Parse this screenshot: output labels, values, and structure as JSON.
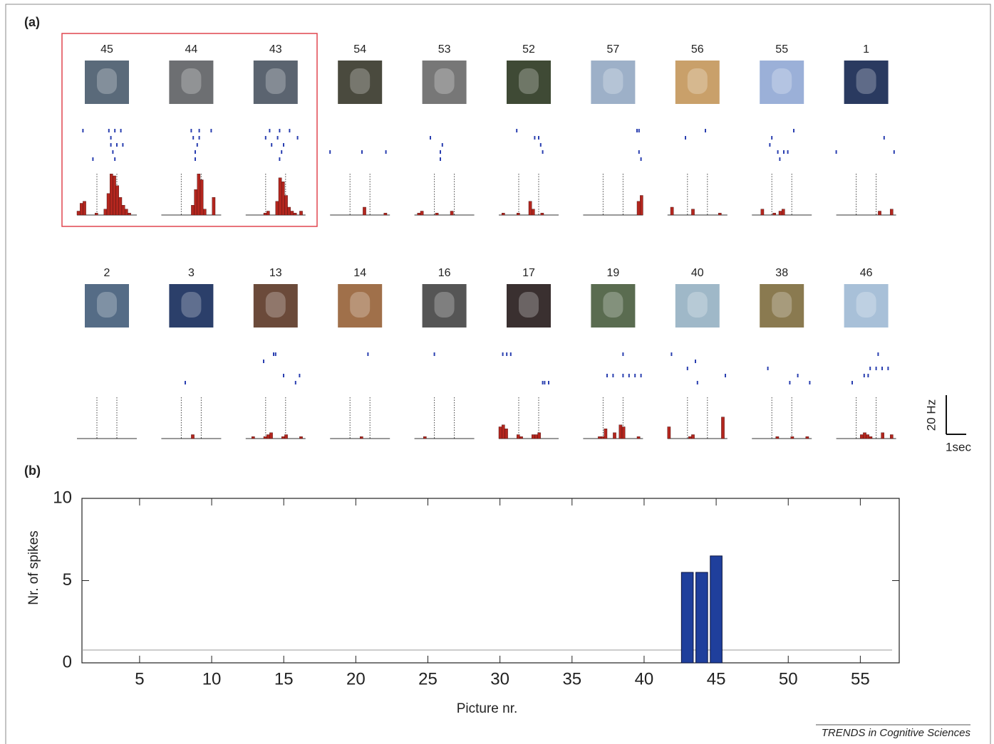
{
  "panel_a": {
    "label": "(a)",
    "scale_bar": {
      "y_value": 20,
      "y_label": "20 Hz",
      "x_value": 1,
      "x_label": "1sec"
    },
    "xlim": [
      -1,
      2
    ],
    "stim": [
      0,
      1
    ],
    "panels": [
      {
        "label": "45",
        "hist": [
          2,
          6,
          7,
          0,
          0,
          0,
          1,
          0,
          0,
          3,
          11,
          21,
          20,
          15,
          9,
          5,
          3,
          1,
          0,
          0
        ],
        "spikes": [
          [
            0,
            -0.7
          ],
          [
            0,
            0.6
          ],
          [
            0,
            0.9
          ],
          [
            0,
            1.2
          ],
          [
            1,
            0.7
          ],
          [
            2,
            0.7
          ],
          [
            2,
            1.0
          ],
          [
            2,
            1.3
          ],
          [
            3,
            0.8
          ],
          [
            4,
            -0.2
          ],
          [
            4,
            0.9
          ]
        ]
      },
      {
        "label": "44",
        "hist": [
          0,
          0,
          0,
          0,
          0,
          0,
          0,
          0,
          0,
          0,
          5,
          13,
          21,
          18,
          3,
          0,
          0,
          9,
          0,
          0
        ],
        "spikes": [
          [
            0,
            0.5
          ],
          [
            0,
            0.9
          ],
          [
            0,
            1.5
          ],
          [
            1,
            0.6
          ],
          [
            1,
            0.9
          ],
          [
            2,
            0.8
          ],
          [
            3,
            0.7
          ],
          [
            4,
            0.7
          ]
        ]
      },
      {
        "label": "43",
        "hist": [
          0,
          0,
          0,
          0,
          0,
          0,
          1,
          2,
          0,
          0,
          7,
          19,
          17,
          10,
          4,
          2,
          1,
          0,
          2,
          0
        ],
        "spikes": [
          [
            0,
            0.2
          ],
          [
            0,
            0.7
          ],
          [
            0,
            1.2
          ],
          [
            1,
            0.0
          ],
          [
            1,
            0.6
          ],
          [
            1,
            1.6
          ],
          [
            2,
            0.3
          ],
          [
            2,
            0.9
          ],
          [
            3,
            0.8
          ],
          [
            4,
            0.7
          ]
        ]
      },
      {
        "label": "54",
        "hist": [
          0,
          0,
          0,
          0,
          0,
          0,
          0,
          0,
          0,
          0,
          0,
          4,
          0,
          0,
          0,
          0,
          0,
          0,
          1,
          0
        ],
        "spikes": [
          [
            3,
            -1.0
          ],
          [
            3,
            0.6
          ],
          [
            3,
            1.8
          ]
        ]
      },
      {
        "label": "53",
        "hist": [
          0,
          1,
          2,
          0,
          0,
          0,
          0,
          1,
          0,
          0,
          0,
          0,
          2,
          0,
          0,
          0,
          0,
          0,
          0,
          0
        ],
        "spikes": [
          [
            1,
            -0.2
          ],
          [
            2,
            0.4
          ],
          [
            3,
            0.3
          ],
          [
            4,
            0.3
          ]
        ]
      },
      {
        "label": "52",
        "hist": [
          0,
          1,
          0,
          0,
          0,
          0,
          1,
          0,
          0,
          0,
          7,
          3,
          0,
          0,
          1,
          0,
          0,
          0,
          0,
          0
        ],
        "spikes": [
          [
            0,
            -0.1
          ],
          [
            1,
            0.8
          ],
          [
            1,
            1.0
          ],
          [
            2,
            1.1
          ],
          [
            3,
            1.2
          ]
        ]
      },
      {
        "label": "57",
        "hist": [
          0,
          0,
          0,
          0,
          0,
          0,
          0,
          0,
          0,
          0,
          0,
          0,
          0,
          0,
          0,
          0,
          0,
          0,
          7,
          10
        ],
        "spikes": [
          [
            0,
            1.7
          ],
          [
            0,
            1.8
          ],
          [
            3,
            1.8
          ],
          [
            4,
            1.9
          ]
        ]
      },
      {
        "label": "56",
        "hist": [
          0,
          4,
          0,
          0,
          0,
          0,
          0,
          0,
          3,
          0,
          0,
          0,
          0,
          0,
          0,
          0,
          0,
          1,
          0,
          0
        ],
        "spikes": [
          [
            0,
            0.9
          ],
          [
            1,
            -0.1
          ]
        ]
      },
      {
        "label": "55",
        "hist": [
          0,
          0,
          0,
          3,
          0,
          0,
          0,
          1,
          0,
          2,
          3,
          0,
          0,
          0,
          0,
          0,
          0,
          0,
          0,
          0
        ],
        "spikes": [
          [
            0,
            1.1
          ],
          [
            1,
            0.0
          ],
          [
            2,
            -0.1
          ],
          [
            3,
            0.3
          ],
          [
            3,
            0.6
          ],
          [
            3,
            0.8
          ],
          [
            4,
            0.4
          ]
        ]
      },
      {
        "label": "1",
        "hist": [
          0,
          0,
          0,
          0,
          0,
          0,
          0,
          0,
          0,
          0,
          0,
          0,
          0,
          0,
          2,
          0,
          0,
          0,
          3,
          0
        ],
        "spikes": [
          [
            1,
            1.4
          ],
          [
            3,
            -1.0
          ],
          [
            3,
            1.9
          ]
        ]
      },
      {
        "label": "2",
        "hist": [
          0,
          0,
          0,
          0,
          0,
          0,
          0,
          0,
          0,
          0,
          0,
          0,
          0,
          0,
          0,
          0,
          0,
          0,
          0,
          0
        ],
        "spikes": []
      },
      {
        "label": "3",
        "hist": [
          0,
          0,
          0,
          0,
          0,
          0,
          0,
          0,
          0,
          0,
          2,
          0,
          0,
          0,
          0,
          0,
          0,
          0,
          0,
          0
        ],
        "spikes": [
          [
            4,
            0.2
          ]
        ]
      },
      {
        "label": "13",
        "hist": [
          0,
          0,
          1,
          0,
          0,
          0,
          1,
          2,
          3,
          0,
          0,
          0,
          1,
          2,
          0,
          0,
          0,
          0,
          1,
          0
        ],
        "spikes": [
          [
            0,
            0.4
          ],
          [
            0,
            0.5
          ],
          [
            1,
            -0.1
          ],
          [
            3,
            0.9
          ],
          [
            3,
            1.7
          ],
          [
            4,
            1.5
          ]
        ]
      },
      {
        "label": "14",
        "hist": [
          0,
          0,
          0,
          0,
          0,
          0,
          0,
          0,
          0,
          0,
          1,
          0,
          0,
          0,
          0,
          0,
          0,
          0,
          0,
          0
        ],
        "spikes": [
          [
            0,
            0.9
          ]
        ]
      },
      {
        "label": "16",
        "hist": [
          0,
          0,
          0,
          1,
          0,
          0,
          0,
          0,
          0,
          0,
          0,
          0,
          0,
          0,
          0,
          0,
          0,
          0,
          0,
          0
        ],
        "spikes": [
          [
            0,
            0.0
          ]
        ]
      },
      {
        "label": "17",
        "hist": [
          6,
          7,
          5,
          0,
          0,
          0,
          2,
          1,
          0,
          0,
          0,
          2,
          2,
          3,
          0,
          0,
          0,
          0,
          0,
          0
        ],
        "spikes": [
          [
            0,
            -0.8
          ],
          [
            0,
            -0.6
          ],
          [
            0,
            -0.4
          ],
          [
            4,
            1.2
          ],
          [
            4,
            1.3
          ],
          [
            4,
            1.5
          ]
        ]
      },
      {
        "label": "19",
        "hist": [
          0,
          0,
          0,
          0,
          0,
          1,
          1,
          5,
          0,
          0,
          3,
          0,
          7,
          6,
          0,
          0,
          0,
          0,
          1,
          0
        ],
        "spikes": [
          [
            0,
            1.0
          ],
          [
            3,
            0.2
          ],
          [
            3,
            0.5
          ],
          [
            3,
            1.0
          ],
          [
            3,
            1.3
          ],
          [
            3,
            1.6
          ],
          [
            3,
            1.9
          ]
        ]
      },
      {
        "label": "40",
        "hist": [
          6,
          0,
          0,
          0,
          0,
          0,
          0,
          1,
          2,
          0,
          0,
          0,
          0,
          0,
          0,
          0,
          0,
          0,
          11,
          0
        ],
        "spikes": [
          [
            0,
            -0.8
          ],
          [
            1,
            0.4
          ],
          [
            2,
            0.0
          ],
          [
            3,
            1.9
          ],
          [
            4,
            0.5
          ]
        ]
      },
      {
        "label": "38",
        "hist": [
          0,
          0,
          0,
          0,
          0,
          0,
          0,
          0,
          1,
          0,
          0,
          0,
          0,
          1,
          0,
          0,
          0,
          0,
          1,
          0
        ],
        "spikes": [
          [
            2,
            -0.2
          ],
          [
            3,
            1.3
          ],
          [
            4,
            0.9
          ],
          [
            4,
            1.9
          ]
        ]
      },
      {
        "label": "46",
        "hist": [
          0,
          0,
          0,
          0,
          0,
          0,
          0,
          0,
          2,
          3,
          2,
          1,
          0,
          0,
          0,
          3,
          0,
          0,
          2,
          0
        ],
        "spikes": [
          [
            0,
            1.1
          ],
          [
            2,
            0.7
          ],
          [
            2,
            1.0
          ],
          [
            2,
            1.3
          ],
          [
            2,
            1.6
          ],
          [
            3,
            0.4
          ],
          [
            3,
            0.6
          ],
          [
            4,
            -0.2
          ]
        ]
      }
    ]
  },
  "chart_data": {
    "type": "bar",
    "label": "(b)",
    "x_label": "Picture nr.",
    "y_label": "Nr. of spikes",
    "x": [
      43,
      44,
      45
    ],
    "values": [
      5.5,
      5.5,
      6.5
    ],
    "color": "#1f3f9c",
    "threshold": 0.78,
    "xlim": [
      1,
      57.7
    ],
    "ylim": [
      0,
      10
    ],
    "xticks": [
      5,
      10,
      15,
      20,
      25,
      30,
      35,
      40,
      45,
      50,
      55
    ],
    "yticks": [
      0,
      5,
      10
    ]
  },
  "footer": "TRENDS in Cognitive Sciences"
}
